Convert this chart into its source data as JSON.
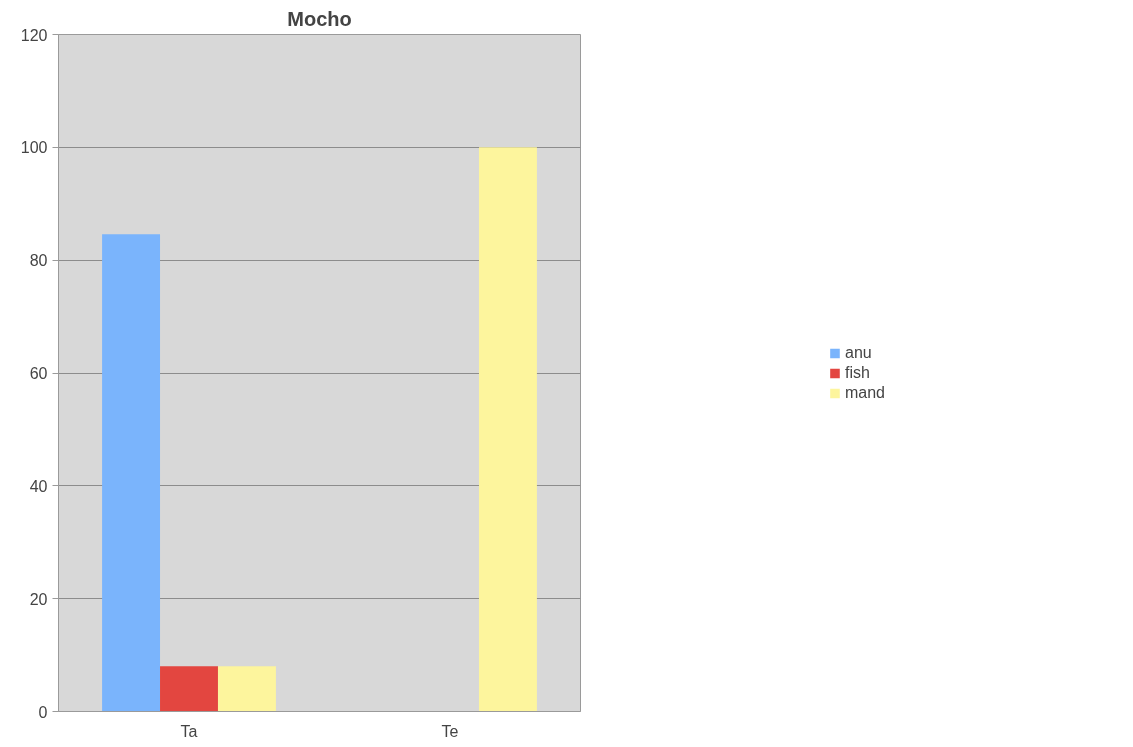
{
  "chart_data": {
    "type": "bar",
    "title": "Mocho",
    "categories": [
      "Ta",
      "Te"
    ],
    "series": [
      {
        "name": "anu",
        "color": "#7ab4fc",
        "values": [
          84.6,
          0
        ]
      },
      {
        "name": "fish",
        "color": "#e34640",
        "values": [
          8,
          0
        ]
      },
      {
        "name": "mand",
        "color": "#fdf59d",
        "values": [
          8,
          100
        ]
      }
    ],
    "ylim": [
      0,
      120
    ],
    "yticks": [
      0,
      20,
      40,
      60,
      80,
      100,
      120
    ],
    "grid": "y",
    "legend": "right"
  }
}
